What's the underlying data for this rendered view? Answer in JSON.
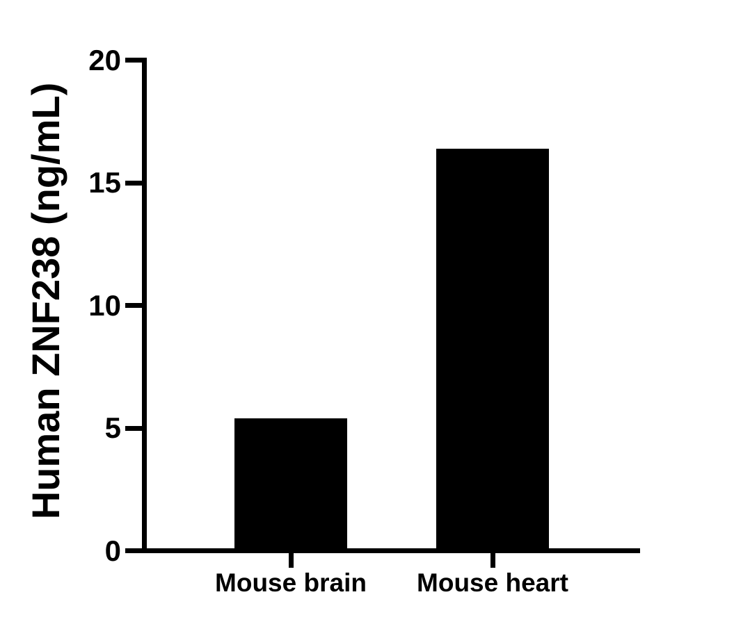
{
  "chart_data": {
    "type": "bar",
    "title": "",
    "categories": [
      "Mouse brain",
      "Mouse heart"
    ],
    "values": [
      5.4,
      16.4
    ],
    "xlabel": "",
    "ylabel": "Human ZNF238 (ng/mL)",
    "ylim": [
      0,
      20
    ],
    "yticks": [
      0,
      5,
      10,
      15,
      20
    ],
    "bar_color": "#000000",
    "axis_color": "#000000",
    "text_color": "#000000",
    "background_color": "#ffffff",
    "grid": false,
    "legend": "none"
  }
}
